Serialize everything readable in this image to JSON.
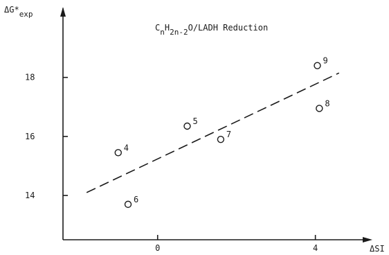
{
  "chart_data": {
    "type": "scatter",
    "title": {
      "parts": [
        {
          "text": "C",
          "level": "base"
        },
        {
          "text": "n",
          "level": "sub"
        },
        {
          "text": "H",
          "level": "base"
        },
        {
          "text": "2n-2",
          "level": "sub"
        },
        {
          "text": "O",
          "level": "base"
        },
        {
          "text": "/LADH Reduction",
          "level": "base"
        }
      ]
    },
    "xlabel": "ΔSI",
    "ylabel": {
      "main": "ΔG*",
      "sub": "exp"
    },
    "xlim": [
      -2.4,
      5.2
    ],
    "ylim": [
      12.5,
      20.2
    ],
    "x_ticks": [
      {
        "value": 0,
        "label": "0"
      },
      {
        "value": 4,
        "label": "4"
      }
    ],
    "y_ticks": [
      {
        "value": 14,
        "label": "14"
      },
      {
        "value": 16,
        "label": "16"
      },
      {
        "value": 18,
        "label": "18"
      }
    ],
    "points": [
      {
        "label": "4",
        "x": -1.0,
        "y": 15.45
      },
      {
        "label": "5",
        "x": 0.75,
        "y": 16.35
      },
      {
        "label": "6",
        "x": -0.75,
        "y": 13.7
      },
      {
        "label": "7",
        "x": 1.6,
        "y": 15.9
      },
      {
        "label": "8",
        "x": 4.1,
        "y": 16.95
      },
      {
        "label": "9",
        "x": 4.05,
        "y": 18.4
      }
    ],
    "fit_line": {
      "x": [
        -1.8,
        4.6
      ],
      "y": [
        14.1,
        18.15
      ],
      "style": "dashed"
    },
    "grid": false,
    "legend": "none"
  }
}
